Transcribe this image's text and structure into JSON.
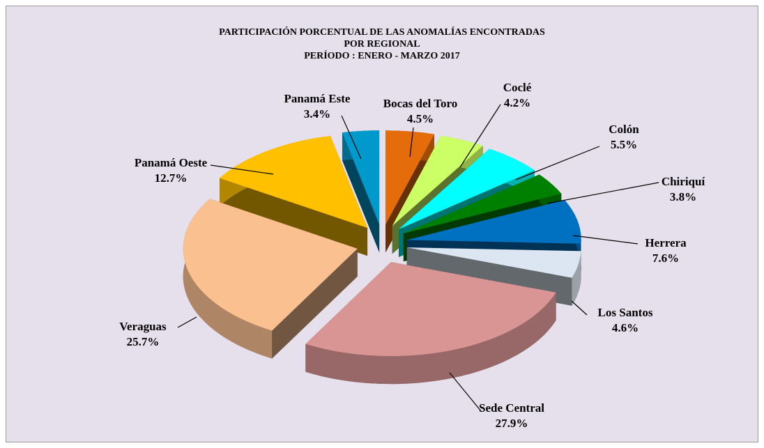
{
  "chart_data": {
    "type": "pie3d",
    "title": [
      "PARTICIPACIÓN PORCENTUAL DE LAS ANOMALÍAS  ENCONTRADAS",
      "POR REGIONAL",
      "PERÍODO : ENERO - MARZO 2017"
    ],
    "categories": [
      "Bocas del Toro",
      "Coclé",
      "Colón",
      "Chiriquí",
      "Herrera",
      "Los Santos",
      "Sede Central",
      "Veraguas",
      "Panamá Oeste",
      "Panamá Este"
    ],
    "values": [
      4.5,
      4.2,
      5.5,
      3.8,
      7.6,
      4.6,
      27.9,
      25.7,
      12.7,
      3.4
    ],
    "value_labels": [
      "4.5%",
      "4.2%",
      "5.5%",
      "3.8%",
      "7.6%",
      "4.6%",
      "27.9%",
      "25.7%",
      "12.7%",
      "3.4%"
    ],
    "colors": [
      "#e46c0a",
      "#ccff66",
      "#00ffff",
      "#008000",
      "#0070c0",
      "#dce6f2",
      "#d99594",
      "#fac090",
      "#ffc000",
      "#0099cc"
    ]
  }
}
